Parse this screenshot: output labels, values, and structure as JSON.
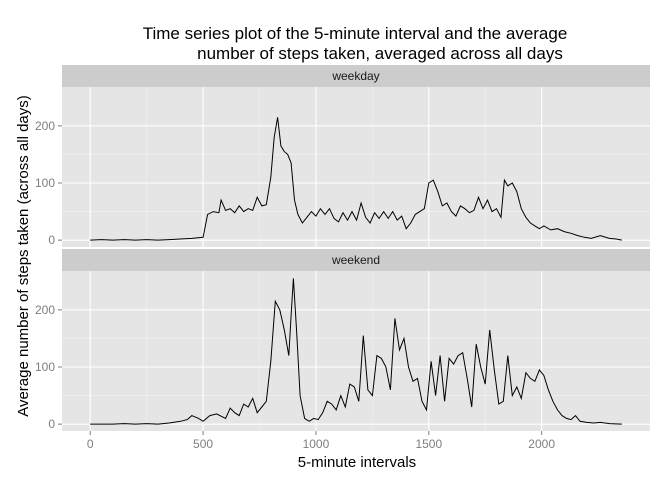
{
  "chart_data": {
    "type": "line",
    "title_lines": [
      "Time series plot of the 5-minute interval and the average",
      "number of steps taken, averaged across all days"
    ],
    "xlabel": "5-minute intervals",
    "ylabel": "Average number of steps taken (across all days)",
    "xlim": [
      -125,
      2480
    ],
    "ylim": [
      -12,
      268
    ],
    "x_ticks": [
      0,
      500,
      1000,
      1500,
      2000
    ],
    "y_ticks": [
      0,
      100,
      200
    ],
    "grid": true,
    "panels": [
      {
        "label": "weekday",
        "x": [
          0,
          50,
          100,
          150,
          200,
          250,
          300,
          350,
          400,
          450,
          500,
          520,
          545,
          570,
          580,
          600,
          620,
          640,
          660,
          680,
          700,
          720,
          740,
          760,
          780,
          800,
          815,
          830,
          845,
          860,
          875,
          890,
          905,
          920,
          940,
          960,
          980,
          1000,
          1020,
          1040,
          1060,
          1080,
          1100,
          1120,
          1140,
          1160,
          1180,
          1200,
          1220,
          1240,
          1260,
          1280,
          1300,
          1320,
          1340,
          1360,
          1380,
          1400,
          1420,
          1440,
          1460,
          1480,
          1500,
          1520,
          1540,
          1560,
          1580,
          1600,
          1620,
          1640,
          1660,
          1680,
          1700,
          1720,
          1740,
          1760,
          1780,
          1800,
          1820,
          1835,
          1850,
          1870,
          1890,
          1910,
          1930,
          1950,
          1970,
          1990,
          2010,
          2040,
          2070,
          2100,
          2130,
          2160,
          2190,
          2220,
          2260,
          2300,
          2330,
          2355
        ],
        "y": [
          0,
          1,
          0,
          1,
          0,
          1,
          0,
          1,
          2,
          3,
          5,
          45,
          50,
          48,
          70,
          52,
          55,
          48,
          60,
          50,
          55,
          52,
          75,
          60,
          62,
          110,
          180,
          215,
          165,
          155,
          150,
          135,
          70,
          45,
          30,
          40,
          50,
          42,
          55,
          45,
          55,
          38,
          32,
          48,
          35,
          50,
          35,
          65,
          40,
          30,
          48,
          38,
          50,
          38,
          50,
          35,
          42,
          20,
          30,
          45,
          50,
          55,
          100,
          105,
          85,
          60,
          65,
          50,
          42,
          60,
          55,
          48,
          52,
          75,
          55,
          70,
          50,
          55,
          40,
          105,
          95,
          100,
          85,
          55,
          40,
          30,
          25,
          20,
          25,
          18,
          20,
          15,
          12,
          8,
          5,
          3,
          8,
          3,
          2,
          0
        ]
      },
      {
        "label": "weekend",
        "x": [
          0,
          50,
          100,
          150,
          200,
          250,
          300,
          350,
          400,
          430,
          450,
          480,
          500,
          530,
          560,
          600,
          620,
          640,
          660,
          680,
          700,
          720,
          740,
          760,
          780,
          800,
          820,
          840,
          860,
          880,
          890,
          900,
          915,
          930,
          950,
          970,
          990,
          1010,
          1030,
          1050,
          1070,
          1090,
          1110,
          1130,
          1150,
          1170,
          1190,
          1210,
          1230,
          1250,
          1270,
          1290,
          1310,
          1330,
          1350,
          1370,
          1390,
          1410,
          1430,
          1450,
          1470,
          1490,
          1510,
          1530,
          1550,
          1570,
          1590,
          1610,
          1630,
          1650,
          1670,
          1690,
          1710,
          1730,
          1750,
          1770,
          1790,
          1810,
          1830,
          1850,
          1870,
          1890,
          1910,
          1930,
          1950,
          1970,
          1990,
          2010,
          2030,
          2050,
          2070,
          2090,
          2110,
          2130,
          2150,
          2170,
          2200,
          2230,
          2260,
          2300,
          2355
        ],
        "y": [
          0,
          0,
          0,
          1,
          0,
          1,
          0,
          2,
          5,
          8,
          15,
          10,
          5,
          15,
          18,
          10,
          28,
          20,
          15,
          35,
          30,
          45,
          20,
          30,
          40,
          110,
          215,
          200,
          165,
          120,
          190,
          255,
          160,
          50,
          10,
          5,
          10,
          8,
          20,
          40,
          35,
          25,
          50,
          30,
          70,
          65,
          40,
          155,
          60,
          50,
          120,
          115,
          100,
          60,
          185,
          130,
          150,
          100,
          75,
          80,
          40,
          25,
          110,
          50,
          120,
          40,
          115,
          105,
          120,
          125,
          80,
          30,
          140,
          100,
          70,
          165,
          95,
          35,
          40,
          120,
          50,
          65,
          45,
          90,
          80,
          75,
          95,
          85,
          60,
          40,
          25,
          15,
          10,
          8,
          15,
          5,
          3,
          2,
          3,
          1,
          0
        ]
      }
    ]
  }
}
